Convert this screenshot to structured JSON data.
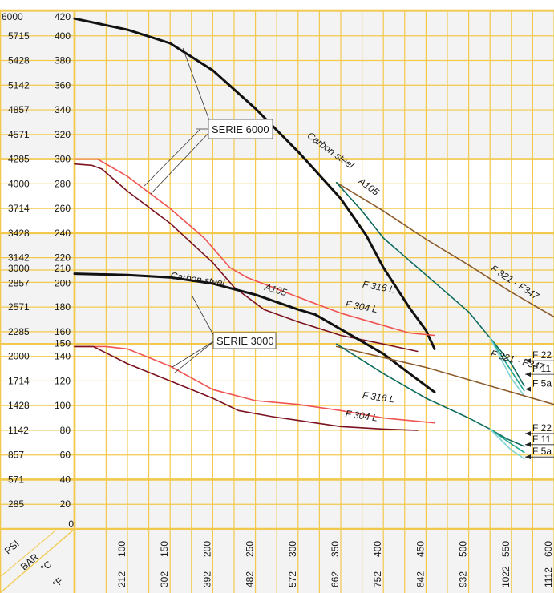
{
  "colors": {
    "grid": "#f2c94c",
    "band": "#f3f3f3",
    "carbon": "#111111",
    "f316": "#ef5350",
    "f304": "#7b1220",
    "f321": "#8b5a2b",
    "f22": "#0d6b5e",
    "f11": "#1fa58e",
    "f5a": "#7fd3d6"
  },
  "corner_labels": {
    "psi": "PSI",
    "bar": "BAR",
    "celsius": "°C",
    "fahrenheit": "°F"
  },
  "annotations": {
    "serie_6000": "SERIE 6000",
    "serie_3000": "SERIE 3000"
  },
  "chart_data": {
    "type": "line",
    "title": "",
    "x_axis": {
      "label_c": "°C",
      "label_f": "°F",
      "range_c": [
        38,
        600
      ],
      "ticks_c": [
        "100",
        "150",
        "200",
        "250",
        "300",
        "350",
        "400",
        "450",
        "500",
        "550",
        "600"
      ],
      "ticks_f": [
        "212",
        "302",
        "392",
        "482",
        "572",
        "662",
        "752",
        "842",
        "932",
        "1022",
        "1112"
      ]
    },
    "y_axis": {
      "label_bar": "BAR",
      "label_psi": "PSI",
      "range_bar": [
        0,
        420
      ],
      "ticks": [
        {
          "bar": "420",
          "psi": "6000"
        },
        {
          "bar": "400",
          "psi": "5715"
        },
        {
          "bar": "380",
          "psi": "5428"
        },
        {
          "bar": "360",
          "psi": "5142"
        },
        {
          "bar": "340",
          "psi": "4857"
        },
        {
          "bar": "320",
          "psi": "4571"
        },
        {
          "bar": "300",
          "psi": "4285"
        },
        {
          "bar": "280",
          "psi": "4000"
        },
        {
          "bar": "260",
          "psi": "3714"
        },
        {
          "bar": "240",
          "psi": "3428"
        },
        {
          "bar": "220",
          "psi": "3142"
        },
        {
          "bar": "210",
          "psi": "3000"
        },
        {
          "bar": "200",
          "psi": "2857"
        },
        {
          "bar": "180",
          "psi": "2571"
        },
        {
          "bar": "160",
          "psi": "2285"
        },
        {
          "bar": "150",
          "psi": ""
        },
        {
          "bar": "140",
          "psi": "2000"
        },
        {
          "bar": "120",
          "psi": "1714"
        },
        {
          "bar": "100",
          "psi": "1428"
        },
        {
          "bar": "80",
          "psi": "1142"
        },
        {
          "bar": "60",
          "psi": "857"
        },
        {
          "bar": "40",
          "psi": "571"
        },
        {
          "bar": "20",
          "psi": "285"
        },
        {
          "bar": "0",
          "psi": ""
        }
      ]
    },
    "series": [
      {
        "name": "Carbon steel A105",
        "group": "SERIE 6000",
        "color": "#111111",
        "points": [
          [
            38,
            414
          ],
          [
            100,
            405
          ],
          [
            150,
            394
          ],
          [
            200,
            372
          ],
          [
            250,
            341
          ],
          [
            300,
            306
          ],
          [
            350,
            268
          ],
          [
            380,
            238
          ],
          [
            400,
            212
          ],
          [
            430,
            180
          ],
          [
            450,
            161
          ],
          [
            460,
            146
          ]
        ]
      },
      {
        "name": "F 321 - F347",
        "group": "SERIE 6000",
        "color": "#8b5a2b",
        "points": [
          [
            345,
            281
          ],
          [
            400,
            258
          ],
          [
            450,
            235
          ],
          [
            500,
            214
          ],
          [
            550,
            192
          ],
          [
            600,
            172
          ]
        ]
      },
      {
        "name": "F 316 L",
        "group": "SERIE 6000",
        "color": "#ef5350",
        "points": [
          [
            38,
            300
          ],
          [
            65,
            300
          ],
          [
            100,
            286
          ],
          [
            150,
            260
          ],
          [
            190,
            236
          ],
          [
            220,
            212
          ],
          [
            240,
            204
          ],
          [
            300,
            188
          ],
          [
            350,
            175
          ],
          [
            400,
            165
          ],
          [
            430,
            159
          ],
          [
            460,
            157
          ]
        ]
      },
      {
        "name": "F 304 L",
        "group": "SERIE 6000",
        "color": "#7b1220",
        "points": [
          [
            38,
            296
          ],
          [
            58,
            295
          ],
          [
            70,
            292
          ],
          [
            100,
            274
          ],
          [
            150,
            248
          ],
          [
            200,
            216
          ],
          [
            225,
            196
          ],
          [
            260,
            178
          ],
          [
            300,
            168
          ],
          [
            350,
            157
          ],
          [
            400,
            150
          ],
          [
            440,
            144
          ]
        ]
      },
      {
        "name": "F 22",
        "group": "SERIE 6000",
        "color": "#0d6b5e",
        "points": [
          [
            345,
            281
          ],
          [
            375,
            258
          ],
          [
            400,
            236
          ],
          [
            450,
            206
          ],
          [
            500,
            176
          ],
          [
            525,
            155
          ],
          [
            550,
            134
          ],
          [
            565,
            116
          ]
        ]
      },
      {
        "name": "F 11",
        "group": "SERIE 6000",
        "color": "#1fa58e",
        "points": [
          [
            525,
            155
          ],
          [
            550,
            128
          ],
          [
            565,
            112
          ]
        ]
      },
      {
        "name": "F 5a",
        "group": "SERIE 6000",
        "color": "#7fd3d6",
        "points": [
          [
            525,
            155
          ],
          [
            550,
            122
          ],
          [
            565,
            108
          ]
        ]
      },
      {
        "name": "Carbon steel A105",
        "group": "SERIE 3000",
        "color": "#111111",
        "points": [
          [
            38,
            207
          ],
          [
            100,
            206
          ],
          [
            150,
            204
          ],
          [
            200,
            199
          ],
          [
            250,
            190
          ],
          [
            300,
            178
          ],
          [
            320,
            174
          ],
          [
            350,
            162
          ],
          [
            400,
            142
          ],
          [
            450,
            116
          ],
          [
            460,
            111
          ]
        ]
      },
      {
        "name": "F 321 - F347",
        "group": "SERIE 3000",
        "color": "#8b5a2b",
        "points": [
          [
            345,
            148
          ],
          [
            400,
            139
          ],
          [
            450,
            131
          ],
          [
            500,
            121
          ],
          [
            550,
            111
          ],
          [
            600,
            101
          ]
        ]
      },
      {
        "name": "F 316 L",
        "group": "SERIE 3000",
        "color": "#ef5350",
        "points": [
          [
            38,
            148
          ],
          [
            75,
            148
          ],
          [
            100,
            146
          ],
          [
            150,
            132
          ],
          [
            200,
            113
          ],
          [
            250,
            104
          ],
          [
            300,
            101
          ],
          [
            350,
            96
          ],
          [
            400,
            90
          ],
          [
            460,
            86
          ]
        ]
      },
      {
        "name": "F 304 L",
        "group": "SERIE 3000",
        "color": "#7b1220",
        "points": [
          [
            38,
            148
          ],
          [
            60,
            148
          ],
          [
            100,
            134
          ],
          [
            150,
            120
          ],
          [
            200,
            106
          ],
          [
            230,
            96
          ],
          [
            270,
            91
          ],
          [
            300,
            88
          ],
          [
            350,
            83
          ],
          [
            400,
            81
          ],
          [
            440,
            80
          ]
        ]
      },
      {
        "name": "F 22",
        "group": "SERIE 3000",
        "color": "#0d6b5e",
        "points": [
          [
            345,
            150
          ],
          [
            400,
            126
          ],
          [
            450,
            106
          ],
          [
            500,
            90
          ],
          [
            525,
            81
          ],
          [
            545,
            73
          ],
          [
            565,
            67
          ]
        ]
      },
      {
        "name": "F 11",
        "group": "SERIE 3000",
        "color": "#1fa58e",
        "points": [
          [
            525,
            81
          ],
          [
            550,
            69
          ],
          [
            565,
            62
          ]
        ]
      },
      {
        "name": "F 5a",
        "group": "SERIE 3000",
        "color": "#7fd3d6",
        "points": [
          [
            525,
            81
          ],
          [
            550,
            64
          ],
          [
            565,
            57
          ]
        ]
      }
    ],
    "labels": [
      {
        "text": "Carbon steel",
        "x": 310,
        "y": 318,
        "angle": 36,
        "italic": true
      },
      {
        "text": "A105",
        "x": 370,
        "y": 281,
        "angle": 36,
        "italic": true
      },
      {
        "text": "F 321 - F347",
        "x": 525,
        "y": 210,
        "angle": 33,
        "italic": true
      },
      {
        "text": "F 316 L",
        "x": 375,
        "y": 196,
        "angle": 10,
        "italic": true
      },
      {
        "text": "F 304 L",
        "x": 355,
        "y": 180,
        "angle": 10,
        "italic": true
      },
      {
        "text": "Carbon steel",
        "x": 150,
        "y": 203,
        "angle": 8,
        "italic": true
      },
      {
        "text": "A105",
        "x": 260,
        "y": 194,
        "angle": 16,
        "italic": true
      },
      {
        "text": "F 321 - F347",
        "x": 525,
        "y": 140,
        "angle": 15,
        "italic": true
      },
      {
        "text": "F 316 L",
        "x": 375,
        "y": 106,
        "angle": 8,
        "italic": true
      },
      {
        "text": "F 304 L",
        "x": 355,
        "y": 91,
        "angle": 8,
        "italic": true
      }
    ],
    "end_labels": [
      {
        "text": "F 22",
        "y": 139
      },
      {
        "text": "F 11",
        "y": 128
      },
      {
        "text": "F 5a",
        "y": 116
      },
      {
        "text": "F 22",
        "y": 80
      },
      {
        "text": "F 11",
        "y": 71
      },
      {
        "text": "F 5a",
        "y": 61
      }
    ],
    "grid": true,
    "legend": "none"
  }
}
